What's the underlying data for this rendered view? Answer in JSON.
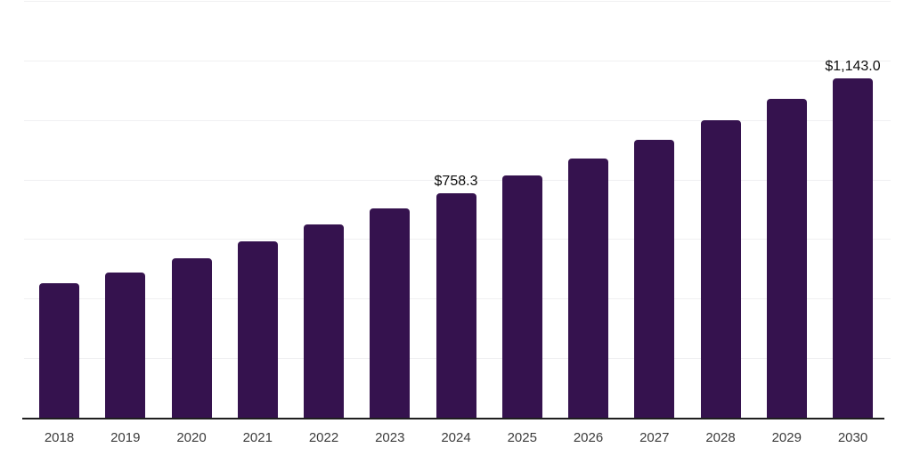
{
  "chart_data": {
    "type": "bar",
    "title": "",
    "xlabel": "",
    "ylabel": "",
    "categories": [
      "2018",
      "2019",
      "2020",
      "2021",
      "2022",
      "2023",
      "2024",
      "2025",
      "2026",
      "2027",
      "2028",
      "2029",
      "2030"
    ],
    "values": [
      454,
      491,
      539,
      596,
      653,
      706,
      758.3,
      816,
      875,
      935,
      1002,
      1074,
      1143.0
    ],
    "data_labels": [
      "",
      "",
      "",
      "",
      "",
      "",
      "$758.3",
      "",
      "",
      "",
      "",
      "",
      "$1,143.0"
    ],
    "ylim": [
      0,
      1400
    ],
    "grid_step": 200,
    "grid_visible": true,
    "yticks_visible": false,
    "legend_position": "none",
    "bar_color": "#35124E",
    "grid_color": "#f0f0f2",
    "axis_color": "#1f1f1f",
    "value_label_color": "#0d0d0d",
    "tick_label_color": "#3c3c3c",
    "background_color": "#ffffff"
  }
}
